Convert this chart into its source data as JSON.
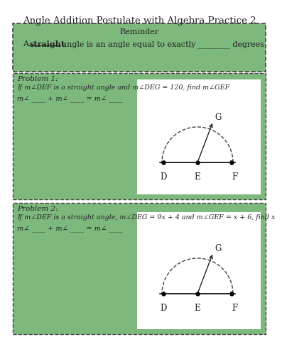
{
  "title": "Angle Addition Postulate with Algebra Practice 2",
  "title_fontsize": 9.5,
  "bg_color": "#ffffff",
  "green_color": "#7db87d",
  "box_border_color": "#444444",
  "reminder_title": "Reminder",
  "reminder_text_plain": "A ",
  "reminder_bold": "straight",
  "reminder_text_after": " angle is an angle equal to exactly ________ degrees",
  "p1_title": "Problem 1:",
  "p1_desc": "If m∠DEF is a straight angle and m∠DEG = 120, find m∠GEF",
  "p1_equation": "m∠ ____ + m∠ ____ = m∠ ____",
  "p2_title": "Problem 2:",
  "p2_desc": "If m∠DEF is a straight angle, m∠DEG = 9x + 4 and m∠GEF = x + 6, find x",
  "p2_equation": "m∠ ____ + m∠ ____ = m∠ ____",
  "diagram_line_color": "#222222",
  "diagram_arc_color": "#444444",
  "white": "#ffffff",
  "text_color": "#222222"
}
